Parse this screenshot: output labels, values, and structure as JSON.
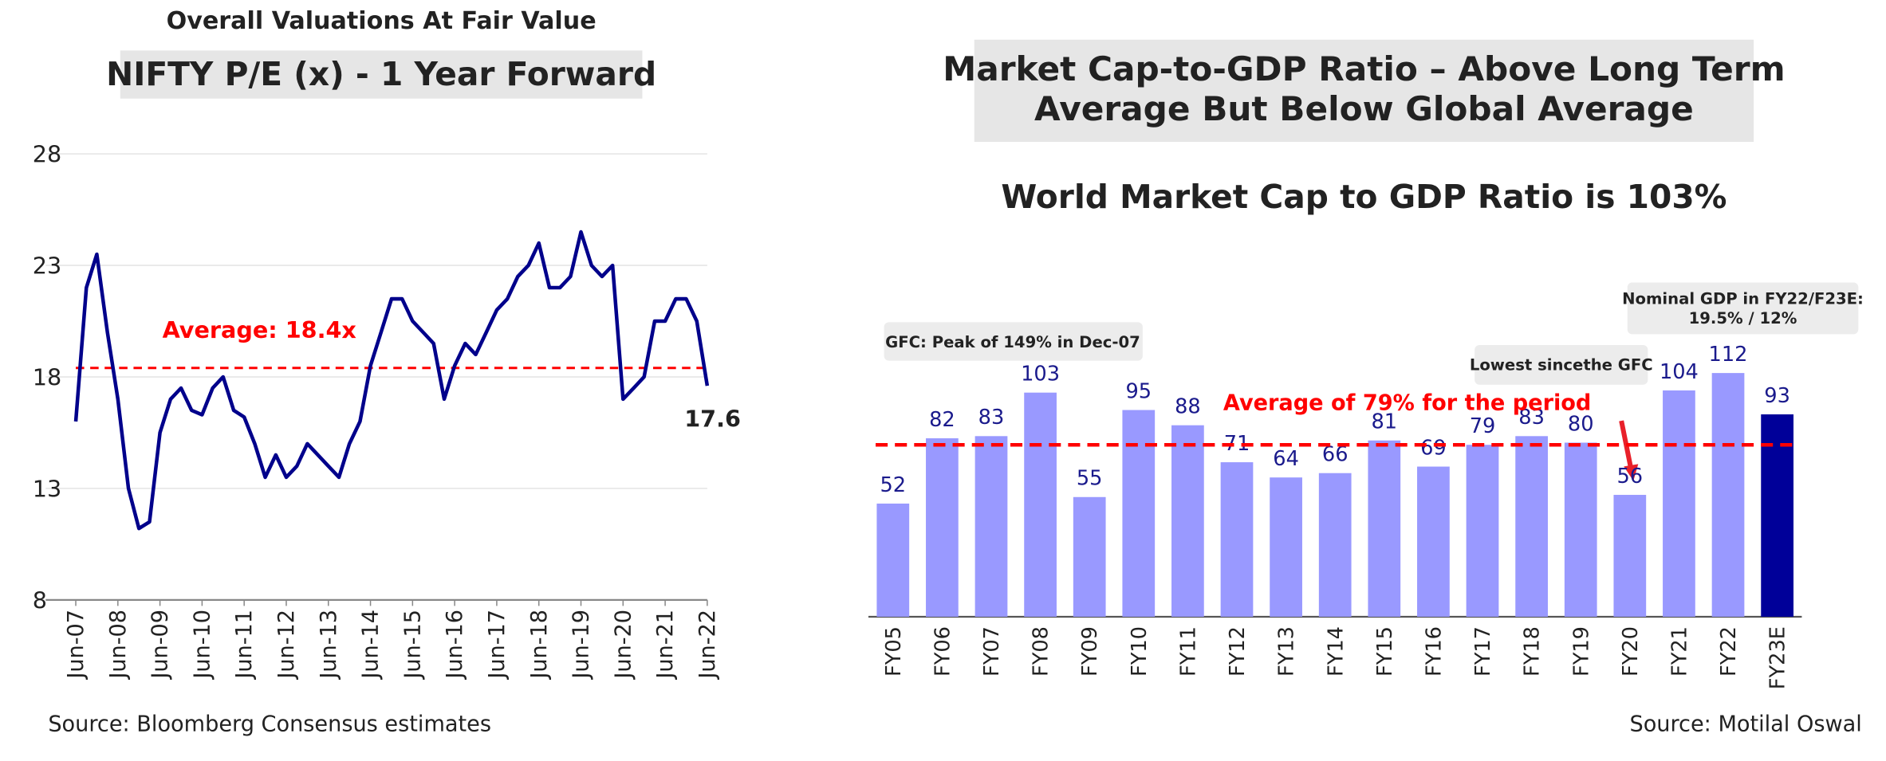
{
  "chart_data": [
    {
      "type": "line",
      "heading": "Overall Valuations At Fair Value",
      "title": "NIFTY P/E (x) - 1 Year Forward",
      "source": "Source: Bloomberg Consensus estimates",
      "categories": [
        "Jun-07",
        null,
        null,
        null,
        "Jun-08",
        null,
        null,
        null,
        "Jun-09",
        null,
        null,
        null,
        "Jun-10",
        null,
        null,
        null,
        "Jun-11",
        null,
        null,
        null,
        "Jun-12",
        null,
        null,
        null,
        "Jun-13",
        null,
        null,
        null,
        "Jun-14",
        null,
        null,
        null,
        "Jun-15",
        null,
        null,
        null,
        "Jun-16",
        null,
        null,
        null,
        "Jun-17",
        null,
        null,
        null,
        "Jun-18",
        null,
        null,
        null,
        "Jun-19",
        null,
        null,
        null,
        "Jun-20",
        null,
        null,
        null,
        "Jun-21",
        null,
        null,
        null,
        "Jun-22"
      ],
      "values": [
        16,
        22,
        23.5,
        20,
        17,
        13,
        11.2,
        11.5,
        15.5,
        17,
        17.5,
        16.5,
        16.3,
        17.5,
        18,
        16.5,
        16.2,
        15,
        13.5,
        14.5,
        13.5,
        14,
        15,
        14.5,
        14,
        13.5,
        15,
        16,
        18.5,
        20,
        21.5,
        21.5,
        20.5,
        20,
        19.5,
        17,
        18.5,
        19.5,
        19,
        20,
        21,
        21.5,
        22.5,
        23,
        24,
        22,
        22,
        22.5,
        24.5,
        23,
        22.5,
        23,
        17,
        17.5,
        18,
        20.5,
        20.5,
        21.5,
        21.5,
        20.5,
        17.6
      ],
      "color": "#00008b",
      "ylim": [
        8,
        28
      ],
      "yticks": [
        8,
        13,
        18,
        23,
        28
      ],
      "grid": true,
      "average": 18.4,
      "average_label": "Average: 18.4x",
      "average_color": "#ff0000"
    },
    {
      "type": "bar",
      "title_lines": [
        "Market Cap-to-GDP Ratio – Above Long Term",
        "Average But Below Global Average"
      ],
      "subtitle": "World Market Cap to GDP Ratio is 103%",
      "source": "Source: Motilal Oswal",
      "categories": [
        "FY05",
        "FY06",
        "FY07",
        "FY08",
        "FY09",
        "FY10",
        "FY11",
        "FY12",
        "FY13",
        "FY14",
        "FY15",
        "FY16",
        "FY17",
        "FY18",
        "FY19",
        "FY20",
        "FY21",
        "FY22",
        "FY23E"
      ],
      "values": [
        52,
        82,
        83,
        103,
        55,
        95,
        88,
        71,
        64,
        66,
        81,
        69,
        79,
        83,
        80,
        56,
        104,
        112,
        93
      ],
      "colors": [
        "#9999ff",
        "#9999ff",
        "#9999ff",
        "#9999ff",
        "#9999ff",
        "#9999ff",
        "#9999ff",
        "#9999ff",
        "#9999ff",
        "#9999ff",
        "#9999ff",
        "#9999ff",
        "#9999ff",
        "#9999ff",
        "#9999ff",
        "#9999ff",
        "#9999ff",
        "#9999ff",
        "#000099"
      ],
      "average": 79,
      "average_label": "Average of 79% for the period",
      "average_color": "#ff0000",
      "note_gfc": "GFC: Peak of 149% in Dec-07",
      "note_lowest": "Lowest sincethe GFC",
      "note_gdp": [
        "Nominal GDP in FY22/F23E:",
        "19.5% / 12%"
      ]
    }
  ]
}
